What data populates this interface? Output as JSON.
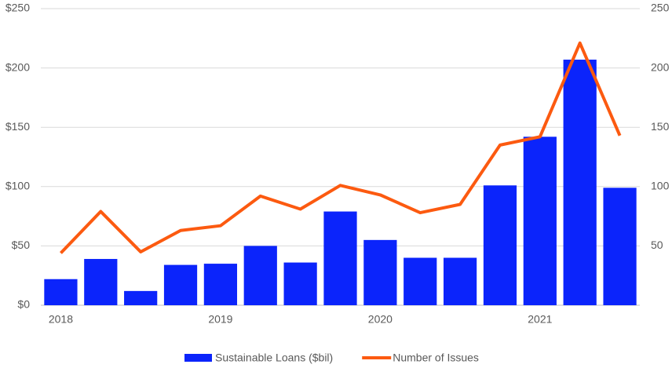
{
  "chart_data": {
    "type": "bar",
    "categories": [
      "2018",
      null,
      null,
      null,
      "2019",
      null,
      null,
      null,
      "2020",
      null,
      null,
      null,
      "2021",
      null,
      null
    ],
    "series": [
      {
        "name": "Sustainable Loans ($bil)",
        "type": "bar",
        "color": "#0b24fb",
        "values": [
          22,
          39,
          12,
          34,
          35,
          50,
          36,
          79,
          55,
          40,
          40,
          101,
          142,
          207,
          99
        ]
      },
      {
        "name": "Number of Issues",
        "type": "line",
        "axis": "y2",
        "color": "#fc5a10",
        "values": [
          44,
          79,
          45,
          63,
          67,
          92,
          81,
          101,
          93,
          78,
          85,
          135,
          142,
          221,
          143
        ]
      }
    ],
    "ylim": [
      0,
      250
    ],
    "yticks": [
      {
        "value": 0,
        "label": "$0"
      },
      {
        "value": 50,
        "label": "$50"
      },
      {
        "value": 100,
        "label": "$100"
      },
      {
        "value": 150,
        "label": "$150"
      },
      {
        "value": 200,
        "label": "$200"
      },
      {
        "value": 250,
        "label": "$250"
      }
    ],
    "y2lim": [
      0,
      250
    ],
    "y2ticks": [
      50,
      100,
      150,
      200,
      250
    ],
    "grid": true,
    "legend": "bottom"
  }
}
